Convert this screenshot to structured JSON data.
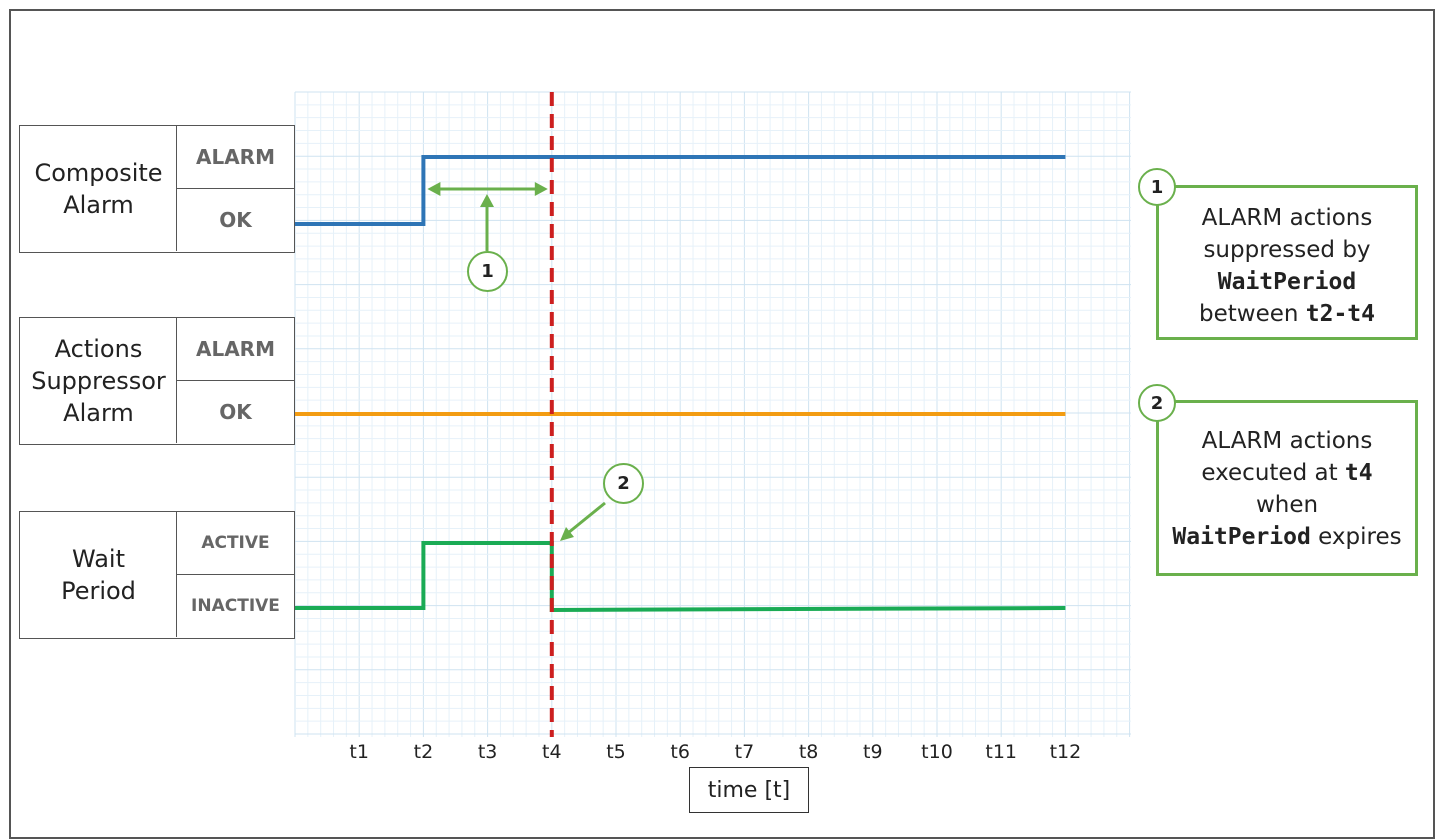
{
  "rows": [
    {
      "name": "Composite\nAlarm",
      "top_state": "ALARM",
      "bottom_state": "OK"
    },
    {
      "name": "Actions\nSuppressor\nAlarm",
      "top_state": "ALARM",
      "bottom_state": "OK"
    },
    {
      "name": "Wait\nPeriod",
      "top_state": "ACTIVE",
      "bottom_state": "INACTIVE"
    }
  ],
  "x_ticks": [
    "t1",
    "t2",
    "t3",
    "t4",
    "t5",
    "t6",
    "t7",
    "t8",
    "t9",
    "t10",
    "t11",
    "t12"
  ],
  "x_axis_title": "time [t]",
  "markers": {
    "one": "1",
    "two": "2"
  },
  "callouts": [
    {
      "badge": "1",
      "line1": "ALARM actions",
      "line2": "suppressed by",
      "code1": "WaitPeriod",
      "pre2": "between ",
      "code2": "t2-t4"
    },
    {
      "badge": "2",
      "line1": "ALARM actions",
      "pre1": "executed at ",
      "code1": "t4",
      "line3": "when",
      "code2": "WaitPeriod",
      "post2": " expires"
    }
  ],
  "signals": {
    "composite_alarm": {
      "color": "#2e75b6",
      "transitions": [
        {
          "at": "t2",
          "to": "ALARM"
        }
      ],
      "initial": "OK"
    },
    "actions_suppressor_alarm": {
      "color": "#f39c12",
      "transitions": [],
      "initial": "OK"
    },
    "wait_period": {
      "color": "#1aab55",
      "initial": "INACTIVE",
      "transitions": [
        {
          "at": "t2",
          "to": "ACTIVE"
        },
        {
          "at": "t4",
          "to": "INACTIVE"
        }
      ]
    },
    "marker_line": {
      "at": "t4",
      "color": "#cc1f1f"
    },
    "range_arrow": {
      "from": "t2",
      "to": "t4",
      "color": "#6ab04c"
    }
  }
}
